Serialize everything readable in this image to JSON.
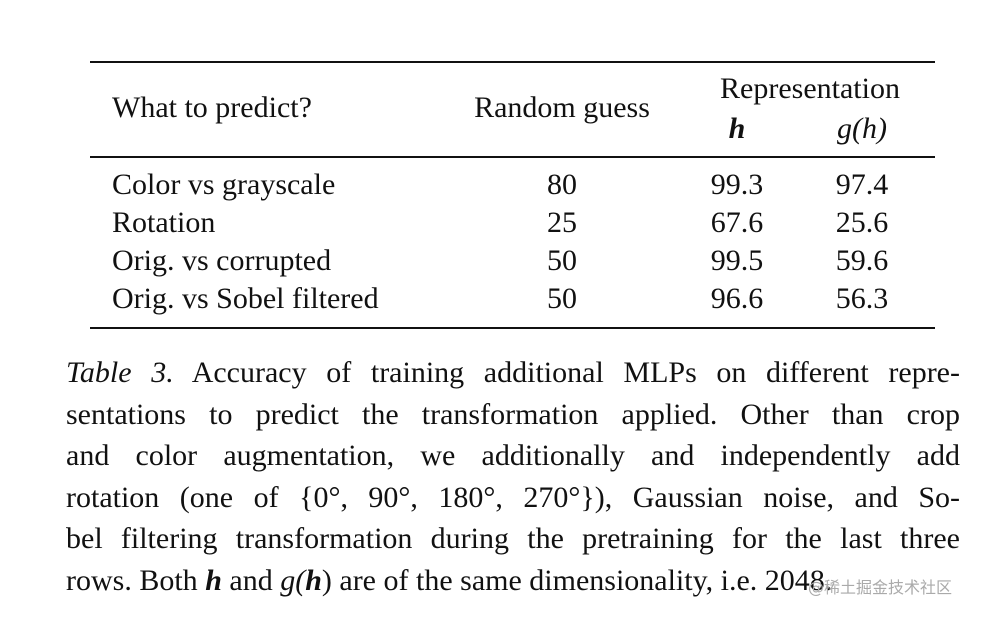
{
  "table": {
    "header": {
      "task": "What to predict?",
      "random": "Random guess",
      "group": "Representation",
      "h": "h",
      "gh": "g(h)"
    },
    "rows": [
      [
        "Color vs grayscale",
        "80",
        "99.3",
        "97.4"
      ],
      [
        "Rotation",
        "25",
        "67.6",
        "25.6"
      ],
      [
        "Orig. vs corrupted",
        "50",
        "99.5",
        "59.6"
      ],
      [
        "Orig. vs Sobel filtered",
        "50",
        "96.6",
        "56.3"
      ]
    ]
  },
  "caption": {
    "label": "Table 3.",
    "lines": [
      " Accuracy of training additional MLPs on different repre-",
      "sentations to predict the transformation applied. Other than crop",
      "and color augmentation, we additionally and independently add",
      "rotation (one of {0°, 90°, 180°, 270°}), Gaussian noise, and So-",
      "bel filtering transformation during the pretraining for the last three"
    ],
    "last_line": [
      "rows. Both ",
      "h",
      " and ",
      "g(",
      "h",
      ") are of the same dimensionality, i.e. 2048."
    ]
  },
  "watermark": "@稀土掘金技术社区"
}
